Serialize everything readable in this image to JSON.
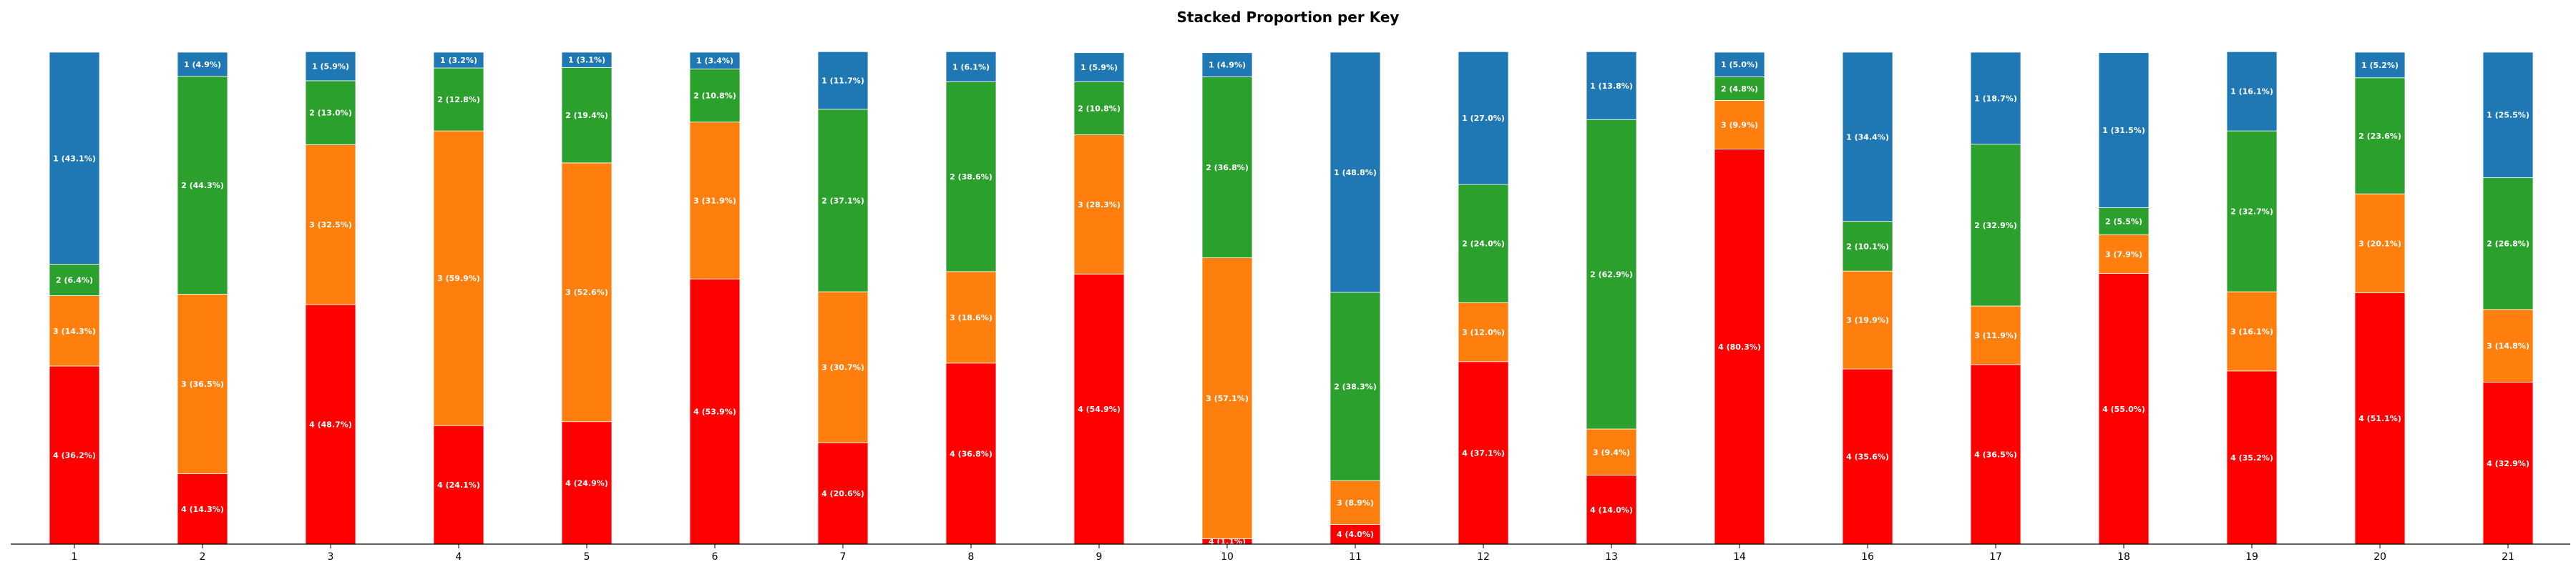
{
  "chart_data": {
    "type": "bar",
    "stacked": true,
    "title": "Stacked Proportion per Key",
    "xlabel": "",
    "ylabel": "",
    "ylim": [
      0,
      100
    ],
    "grid": false,
    "legend": "none",
    "categories": [
      "1",
      "2",
      "3",
      "4",
      "5",
      "6",
      "7",
      "8",
      "9",
      "10",
      "11",
      "12",
      "13",
      "14",
      "16",
      "17",
      "18",
      "19",
      "20",
      "21"
    ],
    "stack_order_bottom_to_top": [
      "4",
      "3",
      "2",
      "1"
    ],
    "series": [
      {
        "key": "4",
        "color": "#ff0000",
        "values": [
          36.2,
          14.3,
          48.7,
          24.1,
          24.9,
          53.9,
          20.6,
          36.8,
          54.9,
          1.1,
          4.0,
          37.1,
          14.0,
          80.3,
          35.6,
          36.5,
          55.0,
          35.2,
          51.1,
          32.9
        ]
      },
      {
        "key": "3",
        "color": "#ff7f0e",
        "values": [
          14.3,
          36.5,
          32.5,
          59.9,
          52.6,
          31.9,
          30.7,
          18.6,
          28.3,
          57.1,
          8.9,
          12.0,
          9.4,
          9.9,
          19.9,
          11.9,
          7.9,
          16.1,
          20.1,
          14.8
        ]
      },
      {
        "key": "2",
        "color": "#2ca02c",
        "values": [
          6.4,
          44.3,
          13.0,
          12.8,
          19.4,
          10.8,
          37.1,
          38.6,
          10.8,
          36.8,
          38.3,
          24.0,
          62.9,
          4.8,
          10.1,
          32.9,
          5.5,
          32.7,
          23.6,
          26.8
        ]
      },
      {
        "key": "1",
        "color": "#1f77b4",
        "values": [
          43.1,
          4.9,
          5.9,
          3.2,
          3.1,
          3.4,
          11.7,
          6.1,
          5.9,
          4.9,
          48.8,
          27.0,
          13.8,
          5.0,
          34.4,
          18.7,
          31.5,
          16.1,
          5.2,
          25.5
        ]
      }
    ]
  }
}
